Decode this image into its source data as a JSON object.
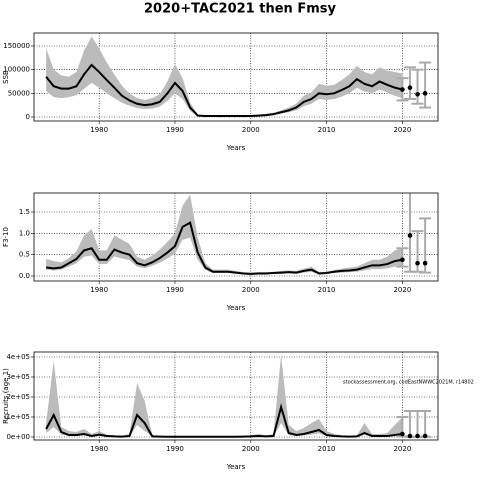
{
  "chart_data": [
    {
      "type": "line",
      "title": "2020+TAC2021 then Fmsy",
      "ylabel": "SSB",
      "xlabel": "Years",
      "x": [
        1973,
        1974,
        1975,
        1976,
        1977,
        1978,
        1979,
        1980,
        1981,
        1982,
        1983,
        1984,
        1985,
        1986,
        1987,
        1988,
        1989,
        1990,
        1991,
        1992,
        1993,
        1994,
        1995,
        1996,
        1997,
        1998,
        1999,
        2000,
        2001,
        2002,
        2003,
        2004,
        2005,
        2006,
        2007,
        2008,
        2009,
        2010,
        2011,
        2012,
        2013,
        2014,
        2015,
        2016,
        2017,
        2018,
        2019,
        2020
      ],
      "values": [
        85000,
        65000,
        60000,
        60000,
        65000,
        90000,
        110000,
        95000,
        78000,
        62000,
        45000,
        35000,
        28000,
        25000,
        27000,
        32000,
        50000,
        72000,
        55000,
        20000,
        3000,
        2000,
        2000,
        2000,
        2000,
        2000,
        2000,
        2000,
        3000,
        4000,
        6000,
        10000,
        14000,
        20000,
        32000,
        38000,
        50000,
        48000,
        50000,
        57000,
        65000,
        80000,
        70000,
        65000,
        75000,
        68000,
        62000,
        58000
      ],
      "lower": [
        55000,
        42000,
        40000,
        42000,
        46000,
        60000,
        72000,
        62000,
        50000,
        40000,
        30000,
        24000,
        19000,
        17000,
        18000,
        22000,
        34000,
        50000,
        38000,
        13000,
        1500,
        1000,
        1000,
        1000,
        1000,
        1000,
        1000,
        1000,
        1500,
        2500,
        4000,
        7000,
        10000,
        14000,
        23000,
        28000,
        38000,
        36000,
        38000,
        43000,
        50000,
        62000,
        54000,
        50000,
        58000,
        52000,
        45000,
        40000
      ],
      "upper": [
        145000,
        100000,
        88000,
        85000,
        95000,
        140000,
        170000,
        145000,
        115000,
        90000,
        66000,
        50000,
        40000,
        36000,
        40000,
        48000,
        75000,
        112000,
        82000,
        30000,
        5000,
        3500,
        3500,
        3500,
        3500,
        3500,
        3500,
        3500,
        5000,
        6500,
        9000,
        14000,
        20000,
        28000,
        45000,
        52000,
        70000,
        66000,
        68000,
        78000,
        90000,
        108000,
        95000,
        90000,
        105000,
        98000,
        95000,
        92000
      ],
      "forecast_x": [
        2020,
        2021,
        2022,
        2023
      ],
      "forecast_values": [
        58000,
        62000,
        48000,
        50000
      ],
      "forecast_lower": [
        35000,
        38000,
        28000,
        20000
      ],
      "forecast_upper": [
        82000,
        105000,
        100000,
        115000
      ],
      "color": "#000000",
      "band_color": "#bbbbbb",
      "forecast_color": "#aaaaaa",
      "xlim": [
        1971.4,
        2024.7
      ],
      "xticks": [
        1980,
        1990,
        2000,
        2010,
        2020
      ],
      "ylim": [
        -8450,
        177465
      ],
      "yticks": [
        0,
        50000,
        100000,
        150000
      ],
      "grid": true
    },
    {
      "type": "line",
      "ylabel": "F3-10",
      "xlabel": "Years",
      "x": [
        1973,
        1974,
        1975,
        1976,
        1977,
        1978,
        1979,
        1980,
        1981,
        1982,
        1983,
        1984,
        1985,
        1986,
        1987,
        1988,
        1989,
        1990,
        1991,
        1992,
        1993,
        1994,
        1995,
        1996,
        1997,
        1998,
        1999,
        2000,
        2001,
        2002,
        2003,
        2004,
        2005,
        2006,
        2007,
        2008,
        2009,
        2010,
        2011,
        2012,
        2013,
        2014,
        2015,
        2016,
        2017,
        2018,
        2019,
        2020
      ],
      "values": [
        0.2,
        0.18,
        0.2,
        0.3,
        0.4,
        0.6,
        0.65,
        0.38,
        0.38,
        0.62,
        0.55,
        0.5,
        0.3,
        0.25,
        0.32,
        0.42,
        0.55,
        0.7,
        1.15,
        1.25,
        0.55,
        0.2,
        0.1,
        0.1,
        0.1,
        0.08,
        0.06,
        0.05,
        0.06,
        0.06,
        0.07,
        0.08,
        0.09,
        0.08,
        0.12,
        0.15,
        0.06,
        0.07,
        0.1,
        0.12,
        0.13,
        0.15,
        0.2,
        0.25,
        0.25,
        0.28,
        0.35,
        0.38
      ],
      "lower": [
        0.15,
        0.13,
        0.15,
        0.22,
        0.3,
        0.45,
        0.48,
        0.28,
        0.28,
        0.46,
        0.41,
        0.37,
        0.22,
        0.18,
        0.24,
        0.31,
        0.41,
        0.52,
        0.85,
        0.9,
        0.38,
        0.14,
        0.07,
        0.07,
        0.07,
        0.05,
        0.04,
        0.03,
        0.04,
        0.04,
        0.05,
        0.05,
        0.06,
        0.05,
        0.08,
        0.1,
        0.04,
        0.05,
        0.07,
        0.08,
        0.09,
        0.1,
        0.13,
        0.16,
        0.16,
        0.18,
        0.22,
        0.22
      ],
      "upper": [
        0.4,
        0.35,
        0.32,
        0.42,
        0.58,
        0.95,
        1.1,
        0.6,
        0.6,
        0.95,
        0.85,
        0.75,
        0.45,
        0.38,
        0.48,
        0.62,
        0.8,
        1.0,
        1.65,
        1.9,
        0.9,
        0.3,
        0.15,
        0.15,
        0.15,
        0.12,
        0.09,
        0.08,
        0.09,
        0.09,
        0.1,
        0.12,
        0.13,
        0.12,
        0.17,
        0.22,
        0.09,
        0.1,
        0.14,
        0.17,
        0.2,
        0.22,
        0.3,
        0.38,
        0.38,
        0.45,
        0.6,
        0.65
      ],
      "forecast_x": [
        2020,
        2021,
        2022,
        2023
      ],
      "forecast_values": [
        0.38,
        0.95,
        0.3,
        0.3
      ],
      "forecast_lower": [
        0.22,
        0.1,
        0.1,
        0.08
      ],
      "forecast_upper": [
        0.65,
        1.95,
        1.05,
        1.35
      ],
      "color": "#000000",
      "band_color": "#bbbbbb",
      "forecast_color": "#aaaaaa",
      "xlim": [
        1971.4,
        2024.7
      ],
      "xticks": [
        1980,
        1990,
        2000,
        2010,
        2020
      ],
      "ylim": [
        -0.117,
        1.945
      ],
      "yticks": [
        {
          "value": 0,
          "label": "0.0"
        },
        0.5,
        {
          "value": 1,
          "label": "1.0"
        },
        1.5
      ],
      "grid": true
    },
    {
      "type": "line",
      "ylabel": "Recruits (age 1)",
      "xlabel": "Years",
      "annotation": "stockassessment.org, codEastNWWC2021M, r14802",
      "x": [
        1973,
        1974,
        1975,
        1976,
        1977,
        1978,
        1979,
        1980,
        1981,
        1982,
        1983,
        1984,
        1985,
        1986,
        1987,
        1988,
        1989,
        1990,
        1991,
        1992,
        1993,
        1994,
        1995,
        1996,
        1997,
        1998,
        1999,
        2000,
        2001,
        2002,
        2003,
        2004,
        2005,
        2006,
        2007,
        2008,
        2009,
        2010,
        2011,
        2012,
        2013,
        2014,
        2015,
        2016,
        2017,
        2018,
        2019,
        2020
      ],
      "values": [
        40000,
        110000,
        25000,
        10000,
        10000,
        15000,
        5000,
        12000,
        5000,
        3000,
        2000,
        5000,
        110000,
        70000,
        3000,
        2000,
        1000,
        1000,
        1000,
        1000,
        1000,
        1000,
        1000,
        1000,
        1000,
        1000,
        2000,
        3000,
        5000,
        3000,
        5000,
        150000,
        20000,
        10000,
        15000,
        25000,
        35000,
        10000,
        5000,
        3000,
        2000,
        3000,
        20000,
        5000,
        5000,
        5000,
        10000,
        15000
      ],
      "lower": [
        20000,
        50000,
        12000,
        5000,
        5000,
        8000,
        2000,
        6000,
        2000,
        1000,
        1000,
        2000,
        60000,
        30000,
        1000,
        1000,
        500,
        500,
        500,
        500,
        500,
        500,
        500,
        500,
        500,
        500,
        1000,
        1500,
        2500,
        1500,
        2500,
        70000,
        10000,
        5000,
        8000,
        12000,
        18000,
        5000,
        2500,
        1500,
        1000,
        1500,
        10000,
        2500,
        2500,
        2500,
        4000,
        4000
      ],
      "upper": [
        70000,
        380000,
        50000,
        30000,
        25000,
        40000,
        15000,
        30000,
        12000,
        8000,
        5000,
        15000,
        270000,
        180000,
        10000,
        5000,
        3000,
        3000,
        3000,
        3000,
        3000,
        3000,
        3000,
        3000,
        3000,
        3000,
        5000,
        8000,
        15000,
        8000,
        15000,
        410000,
        60000,
        30000,
        45000,
        70000,
        90000,
        30000,
        15000,
        8000,
        5000,
        8000,
        70000,
        15000,
        15000,
        20000,
        60000,
        100000
      ],
      "forecast_x": [
        2020,
        2021,
        2022,
        2023
      ],
      "forecast_values": [
        15000,
        5000,
        5000,
        5000
      ],
      "forecast_lower": [
        3000,
        1000,
        1000,
        1000
      ],
      "forecast_upper": [
        100000,
        130000,
        130000,
        130000
      ],
      "color": "#000000",
      "band_color": "#bbbbbb",
      "forecast_color": "#aaaaaa",
      "xlim": [
        1971.4,
        2024.7
      ],
      "xticks": [
        1980,
        1990,
        2000,
        2010,
        2020
      ],
      "ylim": [
        -15000,
        425000
      ],
      "yticks": [
        {
          "value": 0,
          "label": "0e+00"
        },
        {
          "value": 100000,
          "label": "1e+05"
        },
        {
          "value": 200000,
          "label": "2e+05"
        },
        {
          "value": 300000,
          "label": "3e+05"
        },
        {
          "value": 400000,
          "label": "4e+05"
        }
      ],
      "grid": true
    }
  ]
}
